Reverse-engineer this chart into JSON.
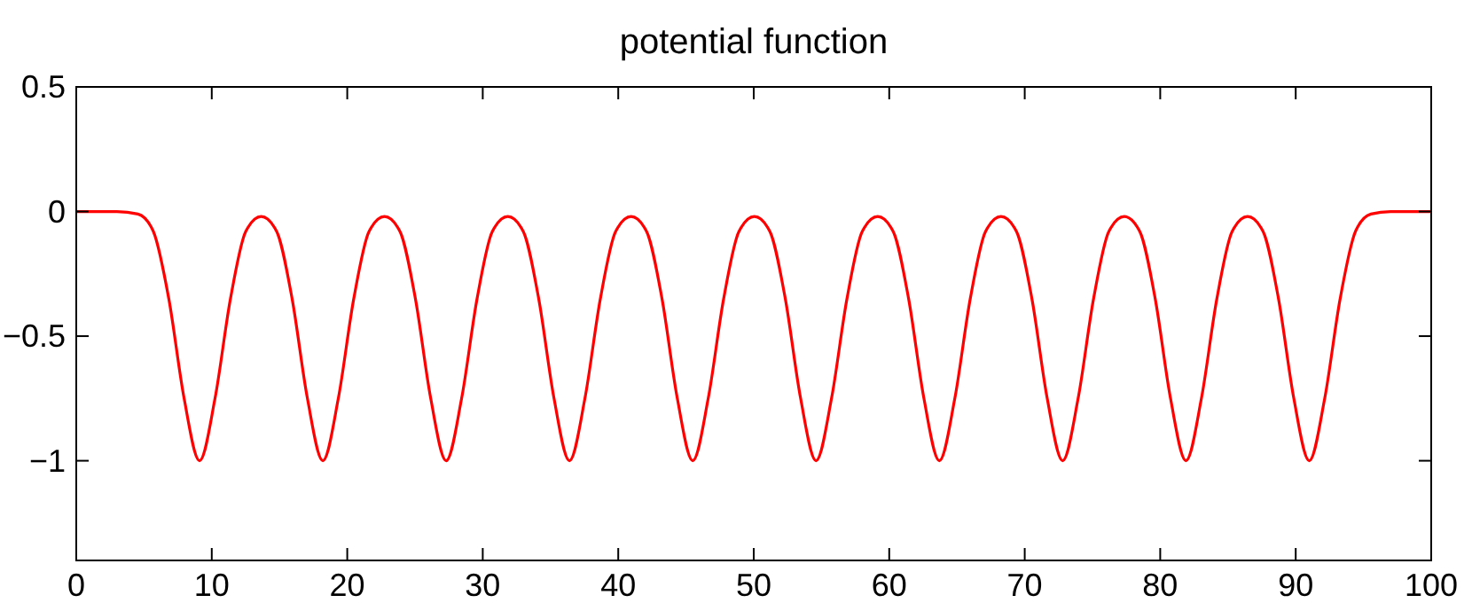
{
  "chart_data": {
    "type": "line",
    "title": "potential function",
    "xlim": [
      0,
      100
    ],
    "ylim": [
      -1.4,
      0.5
    ],
    "xticks": [
      0,
      10,
      20,
      30,
      40,
      50,
      60,
      70,
      80,
      90,
      100
    ],
    "yticks": [
      {
        "value": -1,
        "label": "−1"
      },
      {
        "value": -0.5,
        "label": "−0.5"
      },
      0,
      0.5
    ],
    "grid": false,
    "marker": "none",
    "line_style": "solid",
    "series": [
      {
        "color": "#ff0000",
        "x": [
          0,
          3,
          4.55,
          5.69,
          6.83,
          7.96,
          9.1,
          10.24,
          11.38,
          12.51,
          13.65,
          14.79,
          15.93,
          17.06,
          18.2,
          19.34,
          20.48,
          21.61,
          22.75,
          23.89,
          25.03,
          26.16,
          27.3,
          28.44,
          29.58,
          30.71,
          31.85,
          32.99,
          34.13,
          35.26,
          36.4,
          37.54,
          38.68,
          39.81,
          40.95,
          42.09,
          43.23,
          44.36,
          45.5,
          46.64,
          47.78,
          48.91,
          50.05,
          51.19,
          52.33,
          53.46,
          54.6,
          55.74,
          56.88,
          58.01,
          59.15,
          60.29,
          61.43,
          62.56,
          63.7,
          64.84,
          65.98,
          67.11,
          68.25,
          69.39,
          70.53,
          71.66,
          72.8,
          73.94,
          75.08,
          76.21,
          77.35,
          78.49,
          79.63,
          80.76,
          81.9,
          83.04,
          84.18,
          85.31,
          86.45,
          87.59,
          88.73,
          89.86,
          91.0,
          92.14,
          93.28,
          94.41,
          95.55,
          97,
          100
        ],
        "values": [
          0,
          0,
          -0.01,
          -0.08,
          -0.35,
          -0.75,
          -1,
          -0.75,
          -0.35,
          -0.08,
          -0.02,
          -0.08,
          -0.35,
          -0.75,
          -1,
          -0.75,
          -0.35,
          -0.08,
          -0.02,
          -0.08,
          -0.35,
          -0.75,
          -1,
          -0.75,
          -0.35,
          -0.08,
          -0.02,
          -0.08,
          -0.35,
          -0.75,
          -1,
          -0.75,
          -0.35,
          -0.08,
          -0.02,
          -0.08,
          -0.35,
          -0.75,
          -1,
          -0.75,
          -0.35,
          -0.08,
          -0.02,
          -0.08,
          -0.35,
          -0.75,
          -1,
          -0.75,
          -0.35,
          -0.08,
          -0.02,
          -0.08,
          -0.35,
          -0.75,
          -1,
          -0.75,
          -0.35,
          -0.08,
          -0.02,
          -0.08,
          -0.35,
          -0.75,
          -1,
          -0.75,
          -0.35,
          -0.08,
          -0.02,
          -0.08,
          -0.35,
          -0.75,
          -1,
          -0.75,
          -0.35,
          -0.08,
          -0.02,
          -0.08,
          -0.35,
          -0.75,
          -1,
          -0.75,
          -0.35,
          -0.08,
          -0.01,
          0,
          0
        ]
      }
    ]
  }
}
